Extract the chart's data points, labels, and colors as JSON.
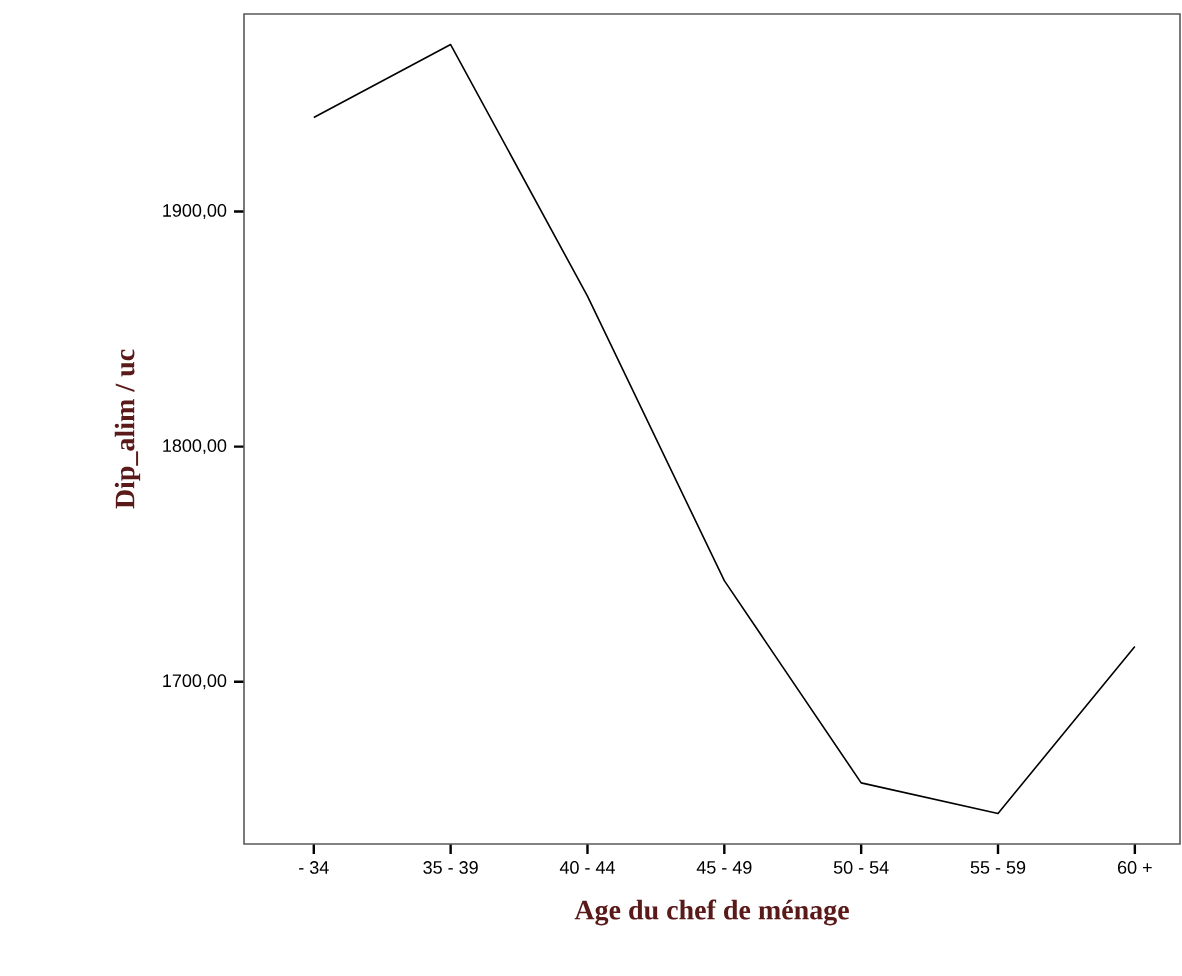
{
  "chart_data": {
    "type": "line",
    "xlabel": "Age du chef de ménage",
    "ylabel": "Dip_alim / uc",
    "categories": [
      "- 34",
      "35 - 39",
      "40 - 44",
      "45 - 49",
      "50 - 54",
      "55 - 59",
      "60 +"
    ],
    "series": [
      {
        "color": "#000000",
        "values": [
          1940,
          1971,
          1864,
          1743,
          1657,
          1644,
          1715
        ]
      }
    ],
    "ylim": [
      1631,
      1984
    ],
    "yticks": [
      {
        "value": 1700,
        "label": "1700,00"
      },
      {
        "value": 1800,
        "label": "1800,00"
      },
      {
        "value": 1900,
        "label": "1900,00"
      }
    ],
    "grid": false,
    "marker": "none",
    "line_style": "solid"
  }
}
